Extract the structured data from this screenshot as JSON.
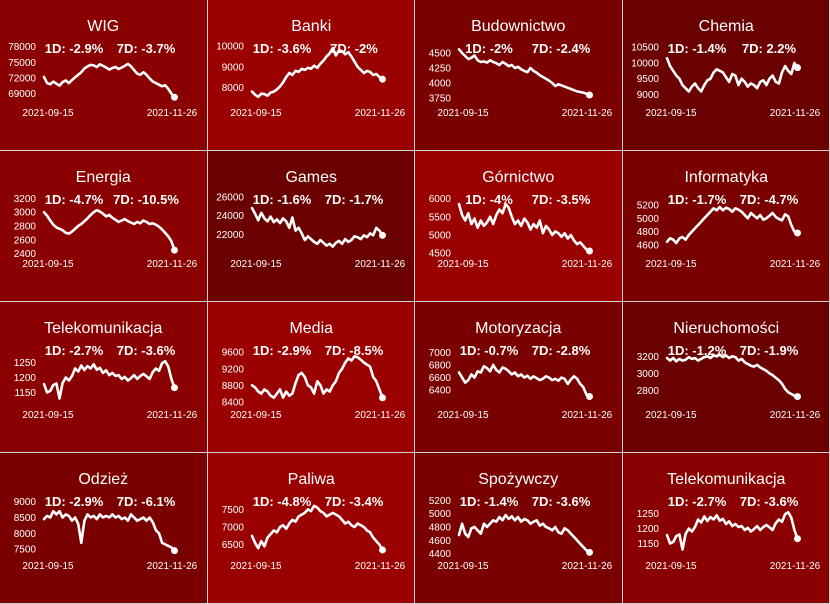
{
  "page": {
    "background": "#cfcfcf",
    "line_color": "#ffffff",
    "text_color": "#ffffff"
  },
  "chart_data": [
    {
      "type": "line",
      "title": "WIG",
      "d1": "1D: -2.9%",
      "d7": "7D: -3.7%",
      "bg": "#8a0000",
      "x_labels": [
        "2021-09-15",
        "2021-11-26"
      ],
      "ylim": [
        67000,
        78500
      ],
      "yticks": [
        69000,
        72000,
        75000,
        78000
      ],
      "values": [
        72200,
        71000,
        70800,
        71300,
        70900,
        70500,
        71200,
        71500,
        71000,
        71600,
        72100,
        72600,
        73100,
        73800,
        74200,
        74500,
        74400,
        74100,
        74600,
        74300,
        74000,
        73600,
        73900,
        74100,
        73700,
        74000,
        74300,
        74700,
        74200,
        73500,
        72800,
        72600,
        73100,
        72600,
        71900,
        71300,
        71000,
        70700,
        70400,
        70600,
        69900,
        69000,
        68300
      ]
    },
    {
      "type": "line",
      "title": "Banki",
      "d1": "1D: -3.6%",
      "d7": "7D: -2%",
      "bg": "#9a0000",
      "x_labels": [
        "2021-09-15",
        "2021-11-26"
      ],
      "ylim": [
        7200,
        10100
      ],
      "yticks": [
        8000,
        9000,
        10000
      ],
      "values": [
        7800,
        7650,
        7550,
        7700,
        7680,
        7600,
        7750,
        7800,
        7900,
        8050,
        8250,
        8500,
        8700,
        8600,
        8800,
        8750,
        8900,
        8850,
        8950,
        8900,
        9050,
        8950,
        9150,
        9300,
        9500,
        9650,
        9900,
        9550,
        9800,
        9750,
        9600,
        9700,
        9500,
        9250,
        9000,
        8850,
        8700,
        8800,
        8750,
        8600,
        8650,
        8500,
        8400
      ]
    },
    {
      "type": "line",
      "title": "Budownictwo",
      "d1": "1D: -2%",
      "d7": "7D: -2.4%",
      "bg": "#7a0000",
      "x_labels": [
        "2021-09-15",
        "2021-11-26"
      ],
      "ylim": [
        3650,
        4650
      ],
      "yticks": [
        3750,
        4000,
        4250,
        4500
      ],
      "values": [
        4560,
        4500,
        4450,
        4400,
        4420,
        4460,
        4380,
        4350,
        4360,
        4340,
        4380,
        4350,
        4330,
        4300,
        4350,
        4320,
        4280,
        4300,
        4250,
        4270,
        4230,
        4200,
        4180,
        4250,
        4200,
        4170,
        4130,
        4100,
        4070,
        4040,
        4000,
        3950,
        3980,
        3960,
        3940,
        3920,
        3900,
        3880,
        3860,
        3850,
        3840,
        3820,
        3800
      ]
    },
    {
      "type": "line",
      "title": "Chemia",
      "d1": "1D: -1.4%",
      "d7": "7D: 2.2%",
      "bg": "#6a0000",
      "x_labels": [
        "2021-09-15",
        "2021-11-26"
      ],
      "ylim": [
        8700,
        10600
      ],
      "yticks": [
        9000,
        9500,
        10000,
        10500
      ],
      "values": [
        10150,
        9900,
        9750,
        9600,
        9500,
        9300,
        9200,
        9100,
        9250,
        9350,
        9200,
        9100,
        9300,
        9450,
        9500,
        9700,
        9800,
        9750,
        9700,
        9550,
        9400,
        9650,
        9600,
        9300,
        9500,
        9400,
        9250,
        9350,
        9300,
        9200,
        9400,
        9450,
        9300,
        9500,
        9600,
        9400,
        9350,
        9700,
        9900,
        9750,
        9650,
        10000,
        9850
      ]
    },
    {
      "type": "line",
      "title": "Energia",
      "d1": "1D: -4.7%",
      "d7": "7D: -10.5%",
      "bg": "#8a0000",
      "x_labels": [
        "2021-09-15",
        "2021-11-26"
      ],
      "ylim": [
        2380,
        3250
      ],
      "yticks": [
        2400,
        2600,
        2800,
        3000,
        3200
      ],
      "values": [
        3000,
        2950,
        2880,
        2820,
        2780,
        2760,
        2740,
        2700,
        2690,
        2720,
        2760,
        2800,
        2830,
        2870,
        2910,
        2960,
        3000,
        3030,
        3010,
        2980,
        2940,
        2960,
        2920,
        2890,
        2860,
        2880,
        2900,
        2870,
        2850,
        2830,
        2860,
        2840,
        2880,
        2860,
        2830,
        2840,
        2820,
        2790,
        2750,
        2700,
        2650,
        2580,
        2450
      ]
    },
    {
      "type": "line",
      "title": "Games",
      "d1": "1D: -1.6%",
      "d7": "7D: -1.7%",
      "bg": "#6a0000",
      "x_labels": [
        "2021-09-15",
        "2021-11-26"
      ],
      "ylim": [
        19800,
        26200
      ],
      "yticks": [
        22000,
        24000,
        26000
      ],
      "values": [
        24800,
        24200,
        23500,
        24300,
        23700,
        23400,
        23900,
        23300,
        23600,
        23200,
        23700,
        23400,
        22700,
        23800,
        22400,
        22700,
        22100,
        21400,
        21800,
        21500,
        21200,
        21000,
        21400,
        21100,
        20800,
        21000,
        20700,
        21100,
        21300,
        21000,
        21500,
        21200,
        21400,
        21800,
        21700,
        21500,
        21900,
        21700,
        22100,
        21900,
        22700,
        22400,
        21900
      ]
    },
    {
      "type": "line",
      "title": "Górnictwo",
      "d1": "1D: -4%",
      "d7": "7D: -3.5%",
      "bg": "#9a0000",
      "x_labels": [
        "2021-09-15",
        "2021-11-26"
      ],
      "ylim": [
        4450,
        6100
      ],
      "yticks": [
        4500,
        5000,
        5500,
        6000
      ],
      "values": [
        5850,
        5550,
        5400,
        5600,
        5300,
        5450,
        5200,
        5400,
        5250,
        5350,
        5500,
        5300,
        5550,
        5700,
        5600,
        5850,
        5750,
        5500,
        5300,
        5400,
        5250,
        5450,
        5350,
        5150,
        5300,
        5200,
        5400,
        5050,
        5250,
        5150,
        5000,
        5100,
        5050,
        4950,
        5050,
        4900,
        5000,
        4850,
        4750,
        4800,
        4700,
        4600,
        4560
      ]
    },
    {
      "type": "line",
      "title": "Informatyka",
      "d1": "1D: -1.7%",
      "d7": "7D: -4.7%",
      "bg": "#7a0000",
      "x_labels": [
        "2021-09-15",
        "2021-11-26"
      ],
      "ylim": [
        4450,
        5350
      ],
      "yticks": [
        4600,
        4800,
        5000,
        5200
      ],
      "values": [
        4650,
        4700,
        4680,
        4630,
        4700,
        4720,
        4680,
        4750,
        4800,
        4850,
        4900,
        4950,
        5000,
        5050,
        5100,
        5150,
        5120,
        5170,
        5120,
        5160,
        5140,
        5100,
        5150,
        5130,
        5100,
        5050,
        5000,
        5080,
        5040,
        5000,
        5050,
        4980,
        5000,
        5040,
        5080,
        5020,
        4990,
        4970,
        5060,
        5030,
        4900,
        4800,
        4780
      ]
    },
    {
      "type": "line",
      "title": "Telekomunikacja",
      "d1": "1D: -2.7%",
      "d7": "7D: -3.6%",
      "bg": "#8a0000",
      "x_labels": [
        "2021-09-15",
        "2021-11-26"
      ],
      "ylim": [
        1105,
        1305
      ],
      "yticks": [
        1150,
        1200,
        1250
      ],
      "values": [
        1178,
        1150,
        1155,
        1175,
        1180,
        1130,
        1182,
        1200,
        1190,
        1205,
        1230,
        1220,
        1240,
        1225,
        1238,
        1230,
        1244,
        1226,
        1232,
        1215,
        1224,
        1208,
        1215,
        1205,
        1208,
        1195,
        1202,
        1190,
        1198,
        1208,
        1195,
        1205,
        1212,
        1204,
        1195,
        1218,
        1230,
        1222,
        1248,
        1254,
        1236,
        1195,
        1166
      ]
    },
    {
      "type": "line",
      "title": "Media",
      "d1": "1D: -2.9%",
      "d7": "7D: -8.5%",
      "bg": "#9a0000",
      "x_labels": [
        "2021-09-15",
        "2021-11-26"
      ],
      "ylim": [
        8300,
        9750
      ],
      "yticks": [
        8400,
        8800,
        9200,
        9600
      ],
      "values": [
        8800,
        8750,
        8650,
        8600,
        8700,
        8650,
        8550,
        8500,
        8600,
        8700,
        8500,
        8650,
        8550,
        8600,
        8850,
        9050,
        9100,
        9000,
        8800,
        8750,
        8600,
        8900,
        8800,
        8600,
        8700,
        8650,
        8800,
        8900,
        9100,
        9200,
        9350,
        9450,
        9400,
        9500,
        9480,
        9420,
        9350,
        9300,
        9250,
        9000,
        8900,
        8700,
        8500
      ]
    },
    {
      "type": "line",
      "title": "Motoryzacja",
      "d1": "1D: -0.7%",
      "d7": "7D: -2.8%",
      "bg": "#7a0000",
      "x_labels": [
        "2021-09-15",
        "2021-11-26"
      ],
      "ylim": [
        6150,
        7100
      ],
      "yticks": [
        6400,
        6600,
        6800,
        7000
      ],
      "values": [
        6680,
        6600,
        6520,
        6560,
        6650,
        6600,
        6700,
        6680,
        6780,
        6750,
        6700,
        6800,
        6720,
        6680,
        6760,
        6740,
        6700,
        6650,
        6680,
        6620,
        6650,
        6600,
        6630,
        6580,
        6620,
        6590,
        6560,
        6580,
        6620,
        6600,
        6560,
        6580,
        6550,
        6600,
        6580,
        6500,
        6570,
        6620,
        6580,
        6500,
        6450,
        6330,
        6300
      ]
    },
    {
      "type": "line",
      "title": "Nieruchomości",
      "d1": "1D: -1.2%",
      "d7": "7D: -1.9%",
      "bg": "#6a0000",
      "x_labels": [
        "2021-09-15",
        "2021-11-26"
      ],
      "ylim": [
        2620,
        3320
      ],
      "yticks": [
        2800,
        3000,
        3200
      ],
      "values": [
        3180,
        3150,
        3180,
        3140,
        3170,
        3150,
        3160,
        3190,
        3170,
        3180,
        3150,
        3170,
        3190,
        3200,
        3180,
        3210,
        3200,
        3220,
        3190,
        3210,
        3180,
        3200,
        3190,
        3150,
        3170,
        3130,
        3110,
        3090,
        3080,
        3100,
        3070,
        3050,
        3030,
        3000,
        2980,
        2950,
        2920,
        2880,
        2820,
        2780,
        2760,
        2740,
        2730
      ]
    },
    {
      "type": "line",
      "title": "Odzież",
      "d1": "1D: -2.9%",
      "d7": "7D: -6.1%",
      "bg": "#7a0000",
      "x_labels": [
        "2021-09-15",
        "2021-11-26"
      ],
      "ylim": [
        7250,
        9150
      ],
      "yticks": [
        7500,
        8000,
        8500,
        9000
      ],
      "values": [
        8450,
        8550,
        8500,
        8700,
        8600,
        8700,
        8500,
        8600,
        8550,
        8400,
        8500,
        8300,
        7700,
        8400,
        8600,
        8500,
        8550,
        8450,
        8600,
        8500,
        8550,
        8500,
        8600,
        8500,
        8550,
        8450,
        8500,
        8400,
        8600,
        8500,
        8400,
        8450,
        8500,
        8400,
        8500,
        8350,
        8100,
        8000,
        7700,
        7650,
        7600,
        7550,
        7450
      ]
    },
    {
      "type": "line",
      "title": "Paliwa",
      "d1": "1D: -4.8%",
      "d7": "7D: -3.4%",
      "bg": "#9a0000",
      "x_labels": [
        "2021-09-15",
        "2021-11-26"
      ],
      "ylim": [
        6150,
        7850
      ],
      "yticks": [
        6500,
        7000,
        7500
      ],
      "values": [
        6750,
        6550,
        6400,
        6600,
        6450,
        6700,
        6800,
        6900,
        6850,
        7000,
        7050,
        6950,
        7100,
        7200,
        7150,
        7300,
        7350,
        7400,
        7500,
        7450,
        7600,
        7550,
        7450,
        7400,
        7300,
        7350,
        7400,
        7350,
        7300,
        7200,
        7100,
        7150,
        7050,
        7000,
        7100,
        7050,
        7000,
        6900,
        6850,
        6700,
        6600,
        6500,
        6350
      ]
    },
    {
      "type": "line",
      "title": "Spożywczy",
      "d1": "1D: -1.4%",
      "d7": "7D: -3.6%",
      "bg": "#7a0000",
      "x_labels": [
        "2021-09-15",
        "2021-11-26"
      ],
      "ylim": [
        4350,
        5250
      ],
      "yticks": [
        4400,
        4600,
        4800,
        5000,
        5200
      ],
      "values": [
        4680,
        4850,
        4700,
        4650,
        4780,
        4800,
        4750,
        4700,
        4850,
        4800,
        4850,
        4900,
        4880,
        4950,
        4900,
        4980,
        4920,
        4960,
        4900,
        4950,
        4880,
        4920,
        4900,
        4850,
        4880,
        4900,
        4820,
        4850,
        4800,
        4780,
        4750,
        4800,
        4720,
        4700,
        4780,
        4750,
        4700,
        4650,
        4600,
        4550,
        4500,
        4450,
        4420
      ]
    },
    {
      "type": "line",
      "title": "Telekomunikacja",
      "d1": "1D: -2.7%",
      "d7": "7D: -3.6%",
      "bg": "#8a0000",
      "x_labels": [
        "2021-09-15",
        "2021-11-26"
      ],
      "ylim": [
        1105,
        1305
      ],
      "yticks": [
        1150,
        1200,
        1250
      ],
      "values": [
        1178,
        1150,
        1155,
        1175,
        1180,
        1130,
        1182,
        1200,
        1190,
        1205,
        1230,
        1220,
        1240,
        1225,
        1238,
        1230,
        1244,
        1226,
        1232,
        1215,
        1224,
        1208,
        1215,
        1205,
        1208,
        1195,
        1202,
        1190,
        1198,
        1208,
        1195,
        1205,
        1212,
        1204,
        1195,
        1218,
        1230,
        1222,
        1248,
        1254,
        1236,
        1195,
        1166
      ]
    }
  ]
}
